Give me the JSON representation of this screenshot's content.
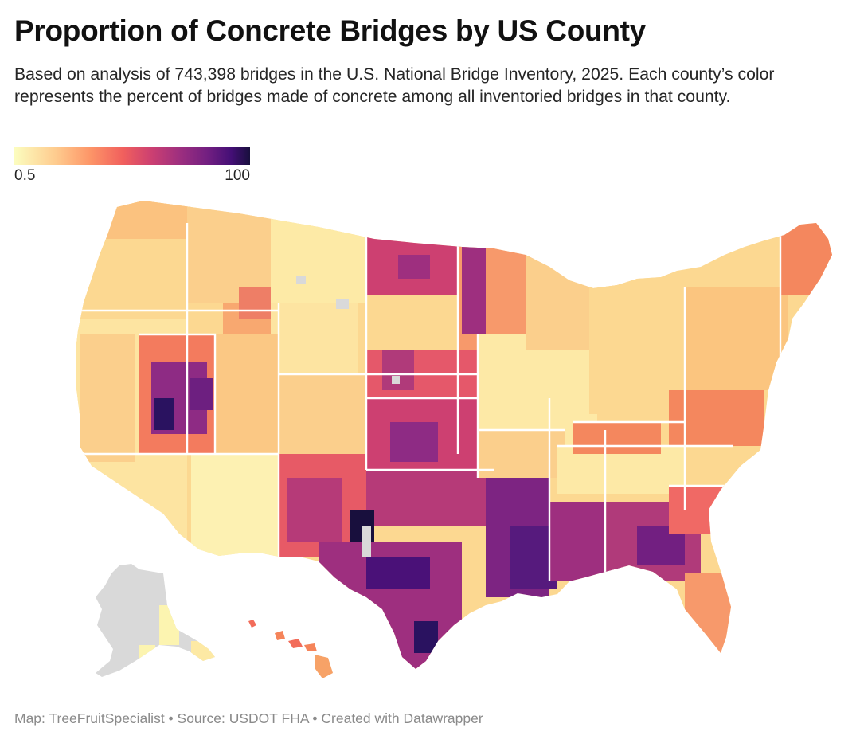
{
  "header": {
    "title": "Proportion of Concrete Bridges by US County",
    "subtitle": "Based on analysis of 743,398 bridges in the U.S. National Bridge Inventory, 2025. Each county’s color represents the percent of bridges made of concrete among all inventoried bridges in that county."
  },
  "legend": {
    "min_label": "0.5",
    "max_label": "100",
    "colors": [
      "#fcfdbf",
      "#feca8d",
      "#fd9668",
      "#f1605d",
      "#cd4071",
      "#9e2f7f",
      "#721f81",
      "#440f76",
      "#180f3d"
    ],
    "no_data_color": "#d9d9d9"
  },
  "map": {
    "type": "county-choropleth",
    "region": "United States counties incl. Alaska and Hawaii insets",
    "state_border_color": "#ffffff"
  },
  "footer": {
    "text": "Map: TreeFruitSpecialist • Source: USDOT FHA • Created with Datawrapper"
  }
}
